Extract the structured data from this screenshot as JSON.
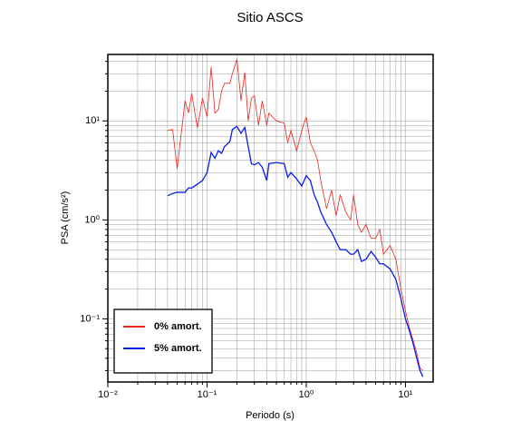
{
  "chart_data": {
    "type": "line",
    "title": "Sitio ASCS",
    "xlabel": "Periodo (s)",
    "ylabel": "PSA (cm/s²)",
    "xscale": "log",
    "yscale": "log",
    "grid": true,
    "legend": "lower left",
    "xlim": [
      0.01,
      19
    ],
    "ylim": [
      0.023,
      47
    ],
    "xticks": [
      {
        "value": 0.01,
        "label": "10⁻²"
      },
      {
        "value": 0.1,
        "label": "10⁻¹"
      },
      {
        "value": 1,
        "label": "10⁰"
      },
      {
        "value": 10,
        "label": "10¹"
      }
    ],
    "yticks": [
      {
        "value": 0.1,
        "label": "10⁻¹"
      },
      {
        "value": 1,
        "label": "10⁰"
      },
      {
        "value": 10,
        "label": "10¹"
      }
    ],
    "xminorticks": [
      0.02,
      0.03,
      0.04,
      0.05,
      0.06,
      0.07,
      0.08,
      0.09,
      0.2,
      0.3,
      0.4,
      0.5,
      0.6,
      0.7,
      0.8,
      0.9,
      2,
      3,
      4,
      5,
      6,
      7,
      8,
      9
    ],
    "yminorticks": [
      0.03,
      0.04,
      0.05,
      0.06,
      0.07,
      0.08,
      0.09,
      0.2,
      0.3,
      0.4,
      0.5,
      0.6,
      0.7,
      0.8,
      0.9,
      2,
      3,
      4,
      5,
      6,
      7,
      8,
      9,
      20,
      30,
      40
    ],
    "x": [
      0.04,
      0.045,
      0.05,
      0.06,
      0.065,
      0.07,
      0.08,
      0.09,
      0.1,
      0.11,
      0.12,
      0.13,
      0.14,
      0.15,
      0.17,
      0.18,
      0.2,
      0.22,
      0.24,
      0.26,
      0.28,
      0.3,
      0.33,
      0.36,
      0.4,
      0.42,
      0.5,
      0.6,
      0.65,
      0.7,
      0.8,
      0.9,
      1.0,
      1.1,
      1.2,
      1.3,
      1.4,
      1.6,
      1.8,
      2.0,
      2.2,
      2.5,
      2.8,
      3.0,
      3.3,
      3.6,
      4.0,
      4.5,
      5,
      5.5,
      6,
      7,
      8,
      9,
      10,
      11,
      12,
      13,
      14,
      15
    ],
    "series": [
      {
        "name": "0% amort.",
        "color": "#e8261f",
        "width": 0.8,
        "values": [
          8,
          8.2,
          3.3,
          16,
          12,
          19,
          8.5,
          17,
          11,
          35,
          12,
          13,
          20,
          24,
          24,
          30,
          42,
          16,
          31,
          10,
          17,
          18,
          9,
          16,
          9,
          12,
          10,
          9.5,
          6,
          8,
          5,
          8,
          11,
          6,
          5,
          4,
          2.5,
          1.3,
          2.0,
          1.1,
          1.8,
          1.2,
          1.0,
          1.8,
          0.9,
          0.75,
          0.9,
          0.65,
          0.65,
          0.8,
          0.45,
          0.55,
          0.4,
          0.2,
          0.12,
          0.08,
          0.06,
          0.045,
          0.032,
          0.03
        ]
      },
      {
        "name": "5% amort.",
        "color": "#0a1ee6",
        "width": 1.3,
        "values": [
          1.75,
          1.85,
          1.9,
          1.9,
          2.1,
          2.1,
          2.3,
          2.5,
          3.0,
          4.8,
          4.2,
          5.0,
          4.7,
          5.5,
          6.2,
          8.2,
          8.8,
          7.5,
          8.6,
          5.5,
          3.7,
          3.6,
          3.8,
          3.4,
          2.5,
          3.7,
          3.8,
          3.7,
          2.7,
          3.0,
          2.6,
          2.2,
          2.8,
          2.5,
          1.8,
          1.5,
          1.2,
          0.9,
          0.75,
          0.6,
          0.5,
          0.5,
          0.45,
          0.45,
          0.5,
          0.38,
          0.4,
          0.48,
          0.42,
          0.36,
          0.36,
          0.32,
          0.25,
          0.16,
          0.1,
          0.075,
          0.055,
          0.04,
          0.03,
          0.026
        ]
      }
    ]
  }
}
